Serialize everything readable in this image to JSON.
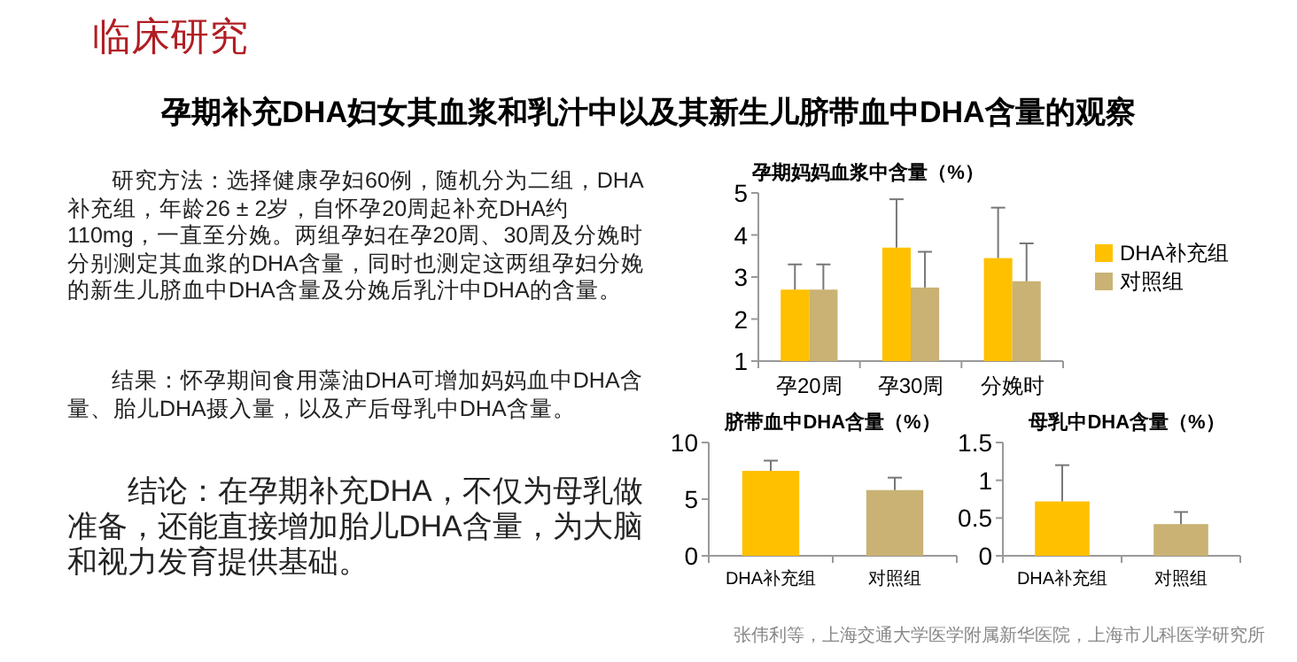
{
  "chart_data": [
    {
      "type": "other",
      "title": "临床研究",
      "subtitle": "孕期补充DHA妇女其血浆和乳汁中以及其新生儿脐带血中DHA含量的观察",
      "annotations": [
        "研究方法：选择健康孕妇60例，随机分为二组，DHA补充组，年龄26 ± 2岁，自怀孕20周起补充DHA约110mg，一直至分娩。两组孕妇在孕20周、30周及分娩时分别测定其血浆的DHA含量，同时也测定这两组孕妇分娩的新生儿脐血中DHA含量及分娩后乳汁中DHA的含量。",
        "结果：怀孕期间食用藻油DHA可增加妈妈血中DHA含量、胎儿DHA摄入量，以及产后母乳中DHA含量。",
        "结论：在孕期补充DHA，不仅为母乳做准备，还能直接增加胎儿DHA含量，为大脑和视力发育提供基础。",
        "张伟利等，上海交通大学医学附属新华医院，上海市儿科医学研究所"
      ]
    },
    {
      "type": "bar",
      "title": "孕期妈妈血浆中含量（%）",
      "categories": [
        "孕20周",
        "孕30周",
        "分娩时"
      ],
      "ylim": [
        1,
        5
      ],
      "yticks": [
        1,
        2,
        3,
        4,
        5
      ],
      "legend": "right",
      "series": [
        {
          "name": "DHA补充组",
          "color": "#ffc000",
          "values": [
            2.7,
            3.7,
            3.45
          ],
          "errors": [
            [
              2.7,
              3.3
            ],
            [
              3.7,
              4.85
            ],
            [
              3.45,
              4.65
            ]
          ]
        },
        {
          "name": "对照组",
          "color": "#c9b274",
          "values": [
            2.7,
            2.75,
            2.9
          ],
          "errors": [
            [
              2.7,
              3.3
            ],
            [
              2.75,
              3.6
            ],
            [
              2.9,
              3.8
            ]
          ]
        }
      ]
    },
    {
      "type": "bar",
      "title": "脐带血中DHA含量（%）",
      "categories": [
        "DHA补充组",
        "对照组"
      ],
      "ylim": [
        0,
        10
      ],
      "yticks": [
        0,
        5,
        10
      ],
      "values": [
        7.5,
        5.8
      ],
      "colors": [
        "#ffc000",
        "#c9b274"
      ],
      "errors": [
        [
          7.5,
          8.4
        ],
        [
          5.8,
          6.9
        ]
      ]
    },
    {
      "type": "bar",
      "title": "母乳中DHA含量（%）",
      "categories": [
        "DHA补充组",
        "对照组"
      ],
      "ylim": [
        0,
        1.5
      ],
      "yticks": [
        0,
        0.5,
        1,
        1.5
      ],
      "values": [
        0.72,
        0.42
      ],
      "colors": [
        "#ffc000",
        "#c9b274"
      ],
      "errors": [
        [
          0.72,
          1.2
        ],
        [
          0.42,
          0.58
        ]
      ]
    }
  ]
}
